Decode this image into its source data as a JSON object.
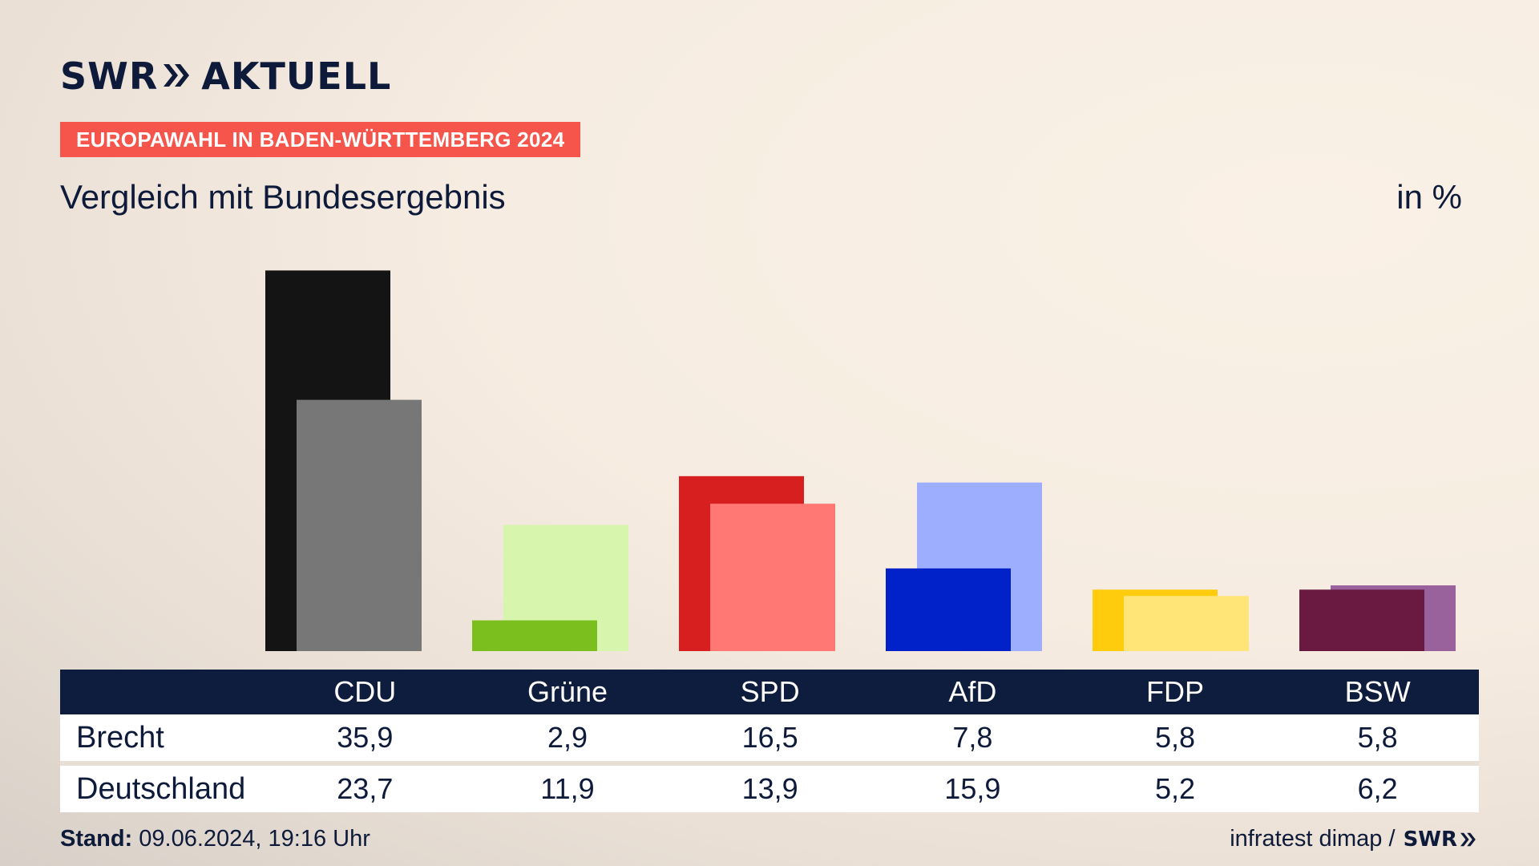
{
  "header": {
    "logo_text": "SWR",
    "logo_suffix": "AKTUELL",
    "badge": "EUROPAWAHL IN BADEN-WÜRTTEMBERG 2024",
    "subtitle": "Vergleich mit Bundesergebnis",
    "unit": "in %"
  },
  "chart_data": {
    "type": "bar",
    "categories": [
      "CDU",
      "Grüne",
      "SPD",
      "AfD",
      "FDP",
      "BSW"
    ],
    "series": [
      {
        "name": "Brecht",
        "values": [
          35.9,
          2.9,
          16.5,
          7.8,
          5.8,
          5.8
        ],
        "colors": [
          "#141414",
          "#7abf1e",
          "#d81f1f",
          "#0022c8",
          "#ffcc0d",
          "#6a1a40"
        ]
      },
      {
        "name": "Deutschland",
        "values": [
          23.7,
          11.9,
          13.9,
          15.9,
          5.2,
          6.2
        ],
        "colors": [
          "#777777",
          "#d7f5ad",
          "#ff7873",
          "#9daeff",
          "#ffe577",
          "#9a629c"
        ]
      }
    ],
    "ylim": [
      0,
      36
    ]
  },
  "table": {
    "row_labels": [
      "Brecht",
      "Deutschland"
    ],
    "columns": [
      "CDU",
      "Grüne",
      "SPD",
      "AfD",
      "FDP",
      "BSW"
    ],
    "rows": [
      [
        "35,9",
        "2,9",
        "16,5",
        "7,8",
        "5,8",
        "5,8"
      ],
      [
        "23,7",
        "11,9",
        "13,9",
        "15,9",
        "5,2",
        "6,2"
      ]
    ]
  },
  "footer": {
    "stand_label": "Stand:",
    "stand_value": "09.06.2024, 19:16 Uhr",
    "source": "infratest dimap /",
    "source_logo": "SWR"
  }
}
